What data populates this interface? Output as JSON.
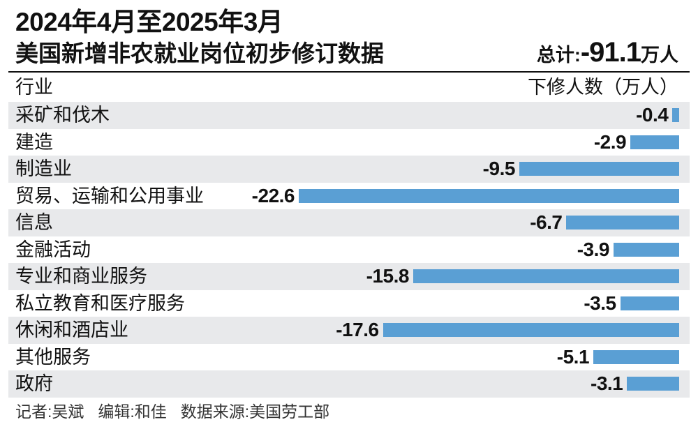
{
  "header": {
    "title_line1": "2024年4月至2025年3月",
    "title_line2": "美国新增非农就业岗位初步修订数据",
    "total_label": "总计:",
    "total_value": "-91.1",
    "total_unit": "万人"
  },
  "columns": {
    "industry": "行业",
    "revision": "下修人数（万人）"
  },
  "chart_data": {
    "type": "bar",
    "orientation": "horizontal",
    "categories": [
      "采矿和伐木",
      "建造",
      "制造业",
      "贸易、运输和公用事业",
      "信息",
      "金融活动",
      "专业和商业服务",
      "私立教育和医疗服务",
      "休闲和酒店业",
      "其他服务",
      "政府"
    ],
    "values": [
      -0.4,
      -2.9,
      -9.5,
      -22.6,
      -6.7,
      -3.9,
      -15.8,
      -3.5,
      -17.6,
      -5.1,
      -3.1
    ],
    "xlim": [
      -22.6,
      0
    ],
    "bar_color": "#5a9fd4",
    "row_shade_color": "#e8e9eb",
    "grid": false
  },
  "footer": {
    "reporter": "记者:吴斌",
    "editor": "编辑:和佳",
    "source": "数据来源:美国劳工部"
  }
}
